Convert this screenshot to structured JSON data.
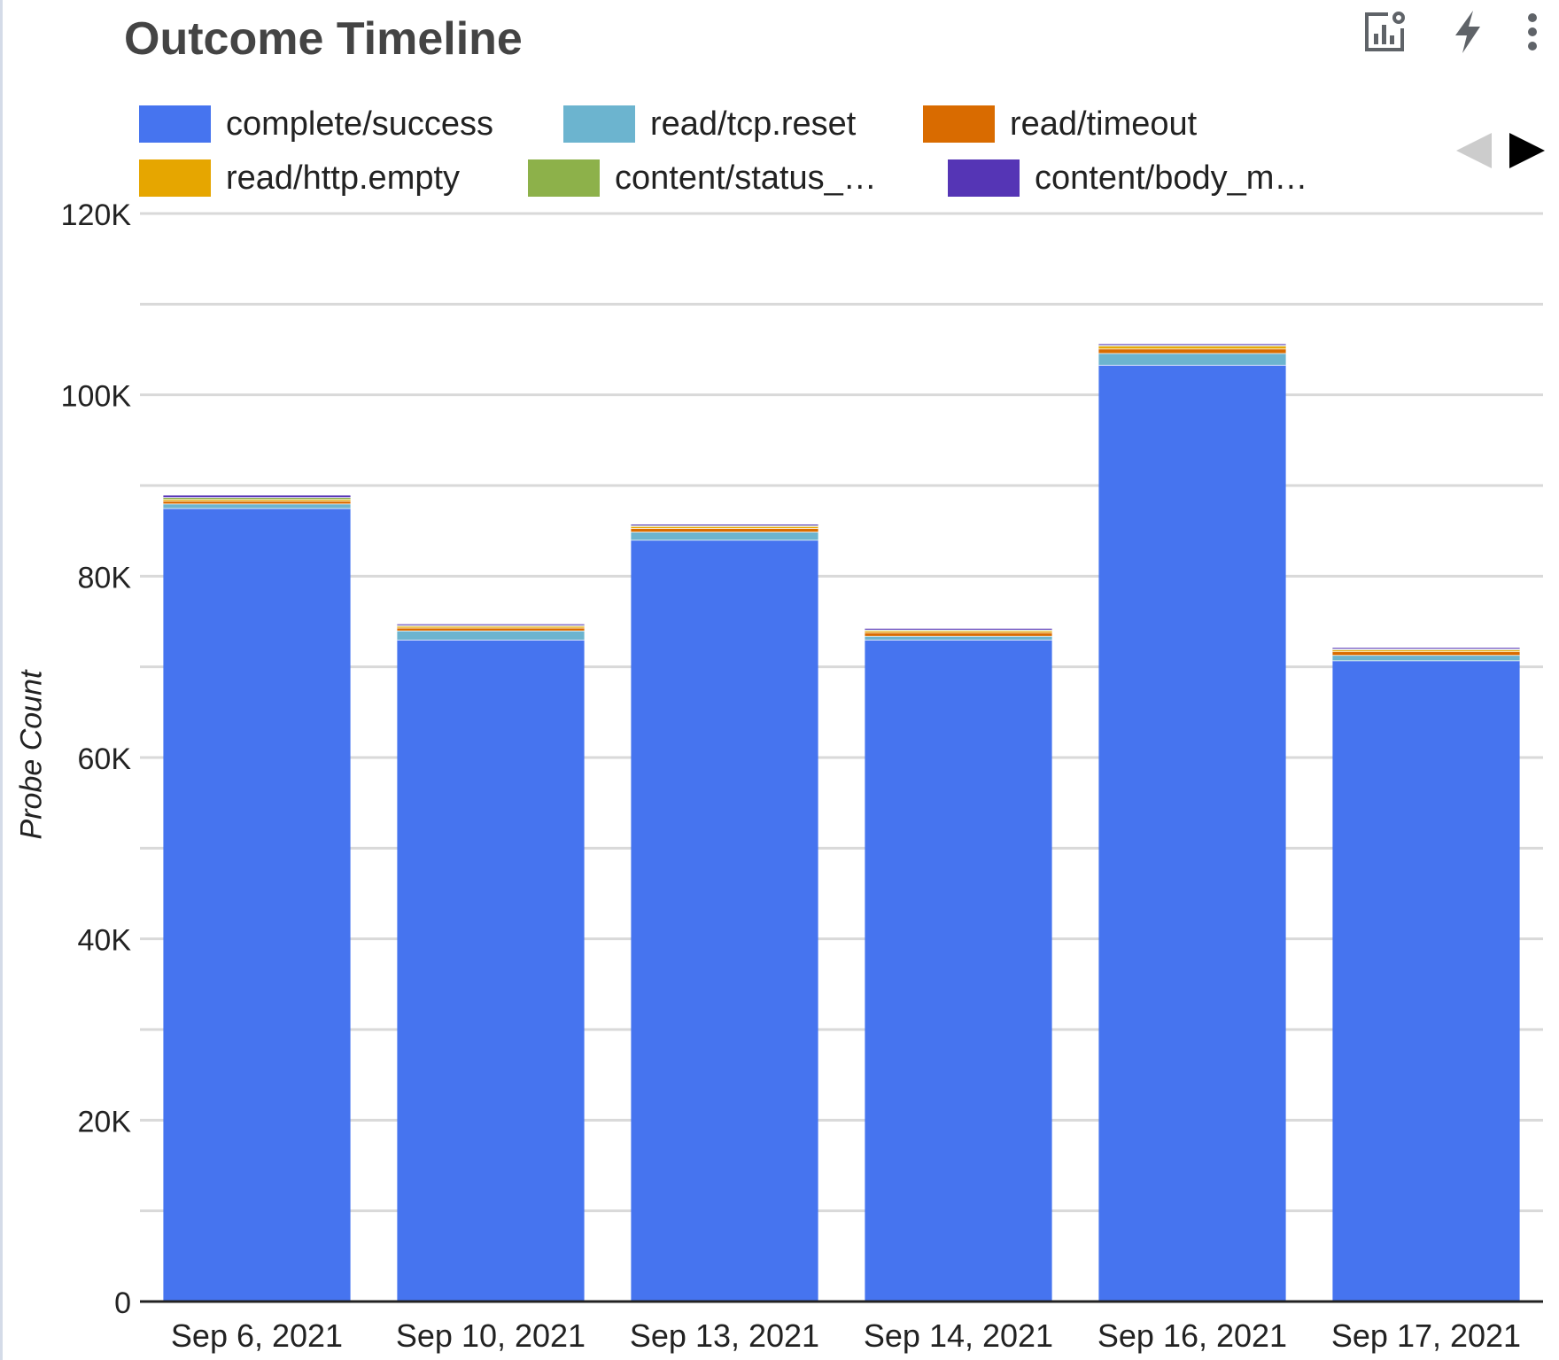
{
  "header": {
    "title": "Outcome Timeline"
  },
  "toolbar": {
    "icons": [
      "chart-settings-icon",
      "lightning-icon",
      "more-vertical-icon"
    ]
  },
  "legend": {
    "items": [
      {
        "label": "complete/success",
        "color": "#4674ef"
      },
      {
        "label": "read/tcp.reset",
        "color": "#6cb4cf"
      },
      {
        "label": "read/timeout",
        "color": "#d96b00"
      },
      {
        "label": "read/http.empty",
        "color": "#e6a600"
      },
      {
        "label": "content/status_…",
        "color": "#8db14a"
      },
      {
        "label": "content/body_m…",
        "color": "#5535b5"
      }
    ],
    "prev_color": "#cccccc",
    "next_color": "#000000"
  },
  "chart_data": {
    "type": "bar",
    "stacked": true,
    "categories": [
      "Sep 6, 2021",
      "Sep 10, 2021",
      "Sep 13, 2021",
      "Sep 14, 2021",
      "Sep 16, 2021",
      "Sep 17, 2021"
    ],
    "series": [
      {
        "name": "complete/success",
        "values": [
          87500,
          73000,
          84000,
          73000,
          103300,
          70700
        ]
      },
      {
        "name": "read/tcp.reset",
        "values": [
          500,
          1000,
          900,
          400,
          1300,
          600
        ]
      },
      {
        "name": "read/timeout",
        "values": [
          300,
          300,
          400,
          400,
          500,
          400
        ]
      },
      {
        "name": "read/http.empty",
        "values": [
          200,
          200,
          200,
          200,
          300,
          200
        ]
      },
      {
        "name": "content/status_…",
        "values": [
          200,
          100,
          100,
          100,
          100,
          100
        ]
      },
      {
        "name": "content/body_m…",
        "values": [
          200,
          100,
          100,
          100,
          100,
          100
        ]
      }
    ],
    "yticks": [
      0,
      20000,
      40000,
      60000,
      80000,
      100000,
      120000
    ],
    "ytick_labels": [
      "0",
      "20K",
      "40K",
      "60K",
      "80K",
      "100K",
      "120K"
    ],
    "ylim": [
      0,
      120000
    ],
    "ylabel": "Probe Count",
    "xlabel": "",
    "grid": true,
    "legend_position": "top"
  }
}
